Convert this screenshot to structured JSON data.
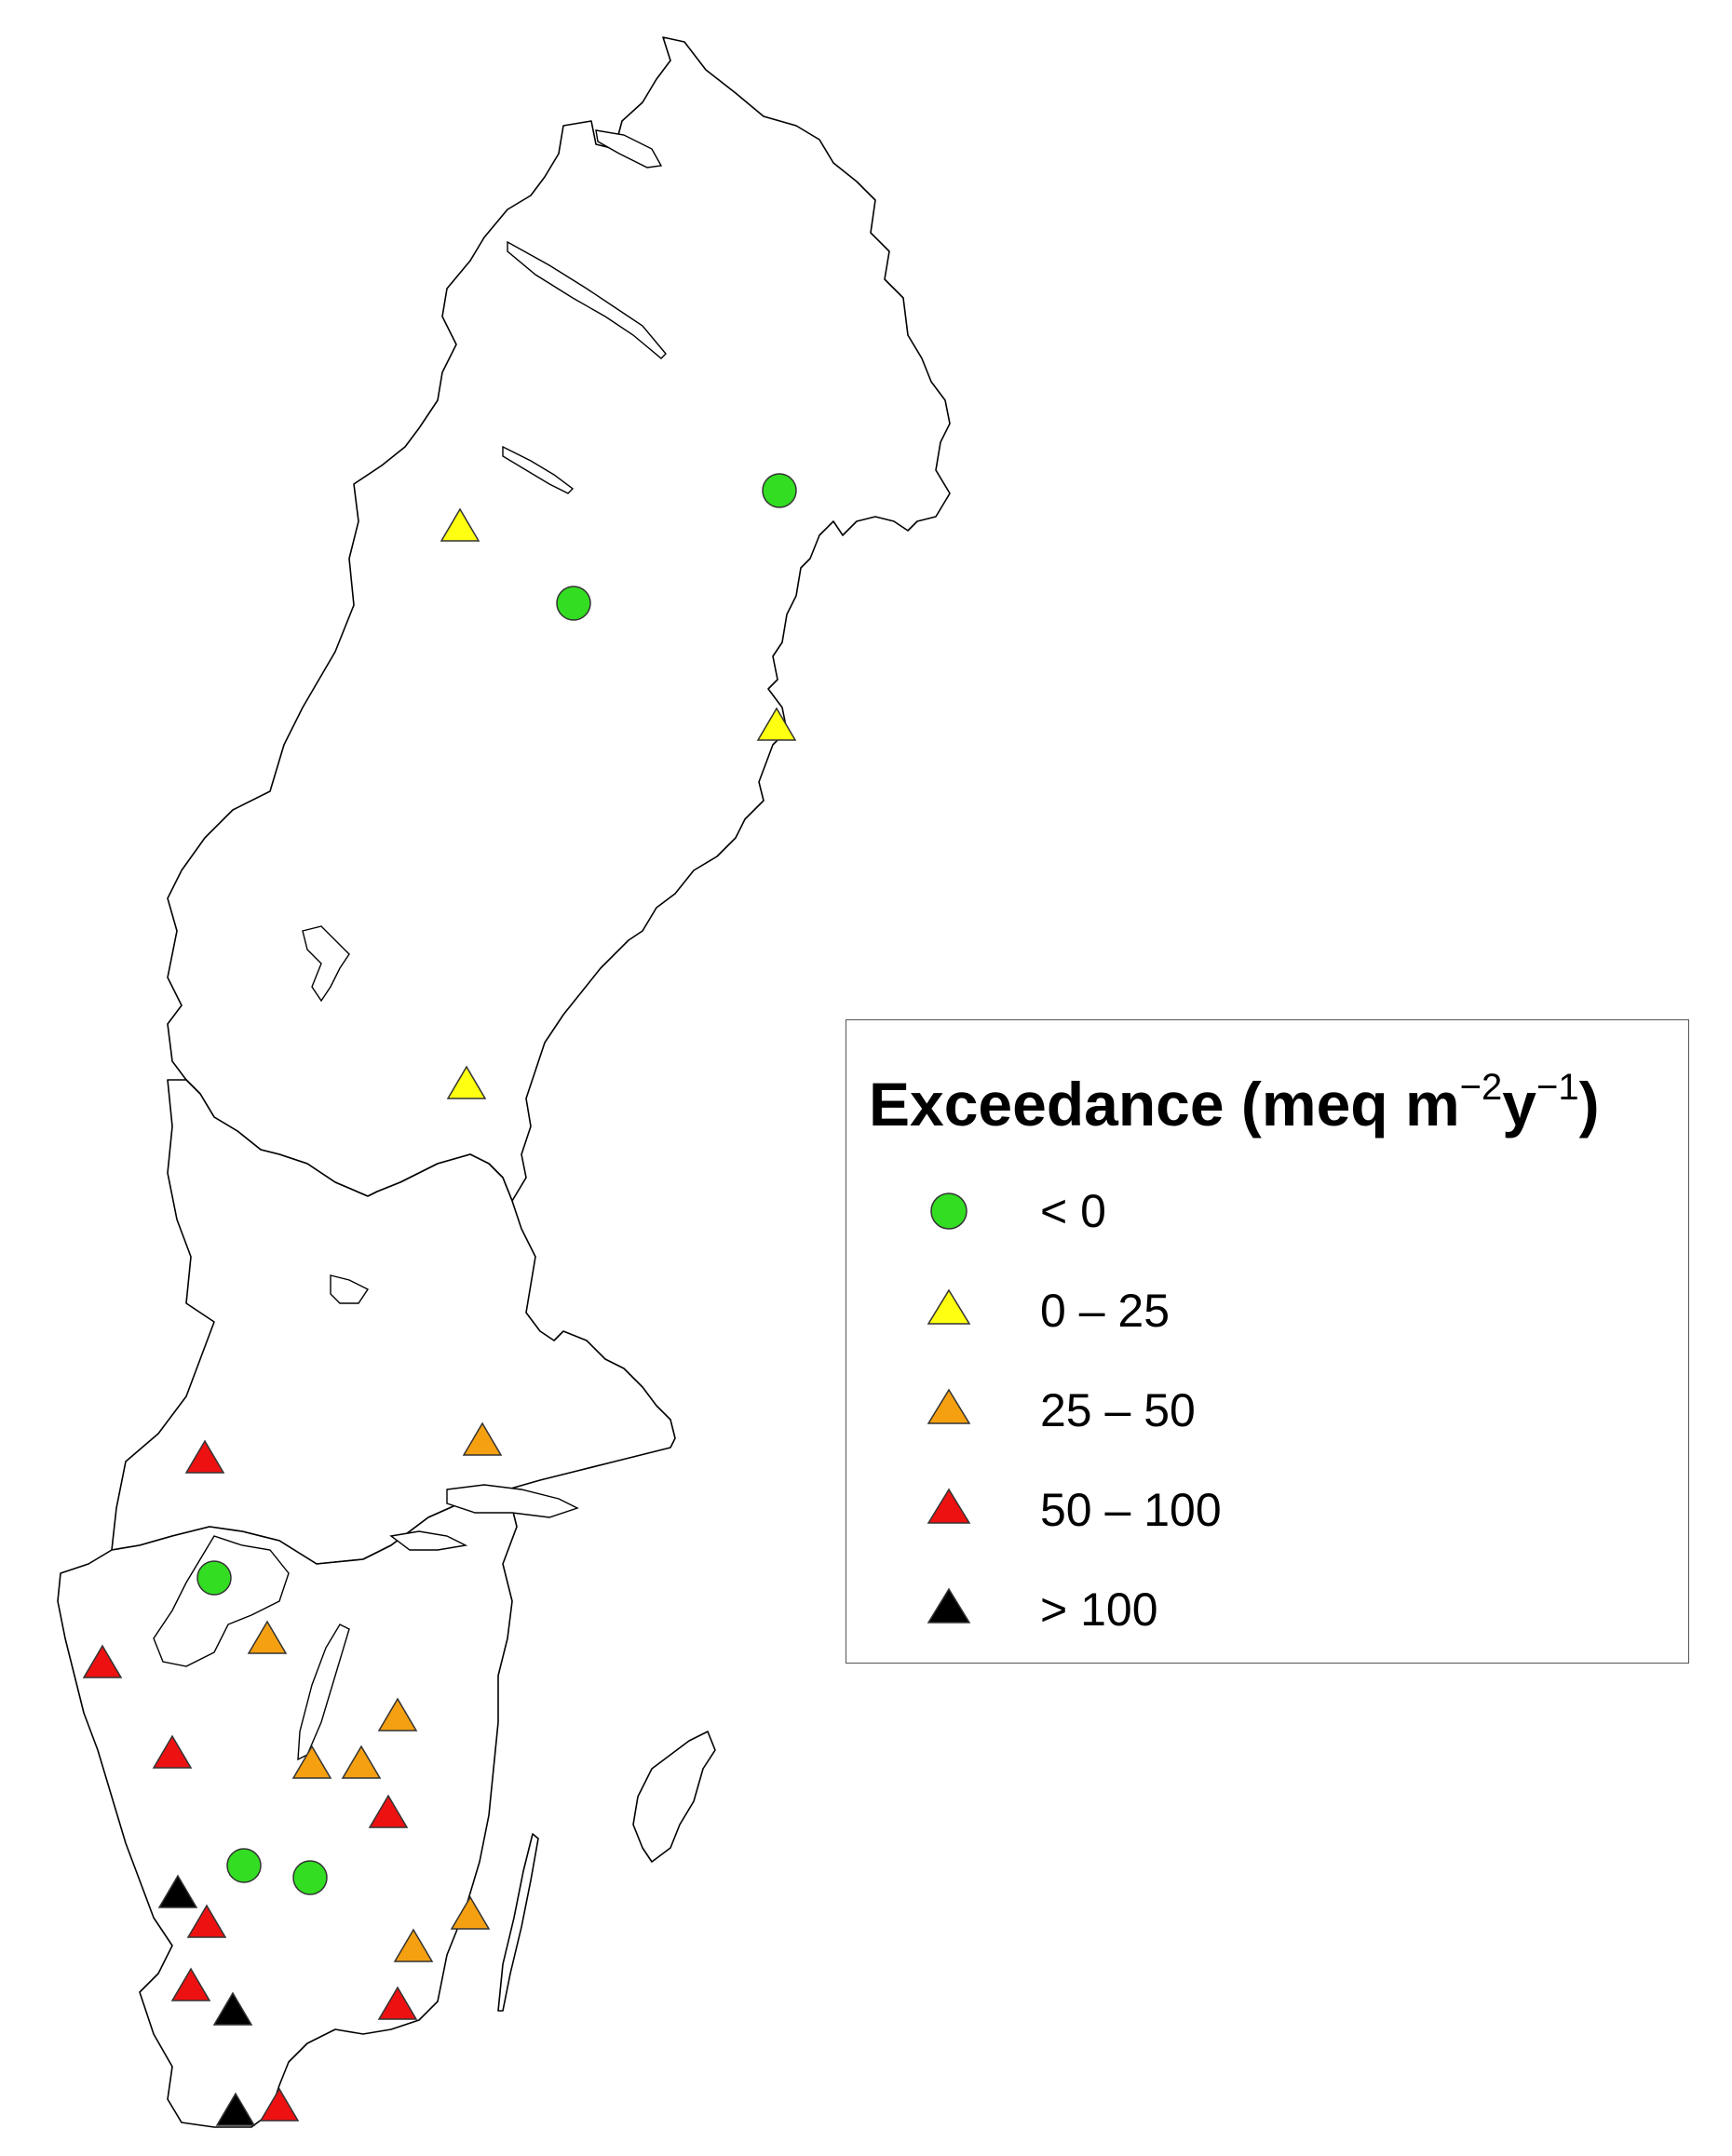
{
  "legend": {
    "title_main": "Exceedance (meq m",
    "title_sup1": "−2",
    "title_mid": "y",
    "title_sup2": "−1",
    "title_end": ")",
    "items": [
      {
        "label": "< 0",
        "shape": "circle",
        "color": "#33dd22"
      },
      {
        "label": "0 – 25",
        "shape": "triangle",
        "color": "#ffff11"
      },
      {
        "label": "25 – 50",
        "shape": "triangle",
        "color": "#f5a011"
      },
      {
        "label": "50 – 100",
        "shape": "triangle",
        "color": "#ee1111"
      },
      {
        "label": "> 100",
        "shape": "triangle",
        "color": "#000000"
      }
    ]
  },
  "map": {
    "country": "Sweden",
    "sites": [
      {
        "category": 0,
        "shape": "circle",
        "color": "#33dd22"
      },
      {
        "category": 0,
        "shape": "circle",
        "color": "#33dd22"
      },
      {
        "category": 0,
        "shape": "circle",
        "color": "#33dd22"
      },
      {
        "category": 0,
        "shape": "circle",
        "color": "#33dd22"
      },
      {
        "category": 0,
        "shape": "circle",
        "color": "#33dd22"
      },
      {
        "category": 1,
        "shape": "triangle",
        "color": "#ffff11"
      },
      {
        "category": 1,
        "shape": "triangle",
        "color": "#ffff11"
      },
      {
        "category": 1,
        "shape": "triangle",
        "color": "#ffff11"
      },
      {
        "category": 2,
        "shape": "triangle",
        "color": "#f5a011"
      },
      {
        "category": 2,
        "shape": "triangle",
        "color": "#f5a011"
      },
      {
        "category": 2,
        "shape": "triangle",
        "color": "#f5a011"
      },
      {
        "category": 2,
        "shape": "triangle",
        "color": "#f5a011"
      },
      {
        "category": 2,
        "shape": "triangle",
        "color": "#f5a011"
      },
      {
        "category": 2,
        "shape": "triangle",
        "color": "#f5a011"
      },
      {
        "category": 2,
        "shape": "triangle",
        "color": "#f5a011"
      },
      {
        "category": 3,
        "shape": "triangle",
        "color": "#ee1111"
      },
      {
        "category": 3,
        "shape": "triangle",
        "color": "#ee1111"
      },
      {
        "category": 3,
        "shape": "triangle",
        "color": "#ee1111"
      },
      {
        "category": 3,
        "shape": "triangle",
        "color": "#ee1111"
      },
      {
        "category": 3,
        "shape": "triangle",
        "color": "#ee1111"
      },
      {
        "category": 3,
        "shape": "triangle",
        "color": "#ee1111"
      },
      {
        "category": 3,
        "shape": "triangle",
        "color": "#ee1111"
      },
      {
        "category": 3,
        "shape": "triangle",
        "color": "#ee1111"
      },
      {
        "category": 4,
        "shape": "triangle",
        "color": "#000000"
      },
      {
        "category": 4,
        "shape": "triangle",
        "color": "#000000"
      },
      {
        "category": 4,
        "shape": "triangle",
        "color": "#000000"
      }
    ]
  }
}
